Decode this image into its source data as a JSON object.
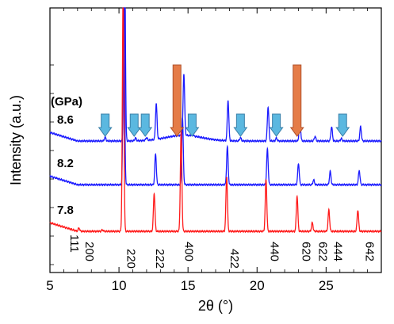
{
  "chart_data": {
    "type": "line",
    "title": "",
    "xlabel": "2θ (°)",
    "ylabel": "Intensity (a.u.)",
    "xlim": [
      5,
      29
    ],
    "x_ticks": [
      5,
      10,
      15,
      20,
      25
    ],
    "pressure_unit_label": "(GPa)",
    "series": [
      {
        "name": "8.6",
        "color": "#1a1aff",
        "baseline": 2.0,
        "broad": [
          [
            14.7,
            0.12,
            1.3
          ]
        ],
        "peaks": [
          [
            9.0,
            0.08
          ],
          [
            10.4,
            5.0
          ],
          [
            11.2,
            0.06
          ],
          [
            12.0,
            0.06
          ],
          [
            12.7,
            0.75
          ],
          [
            14.7,
            1.3
          ],
          [
            15.3,
            0.1
          ],
          [
            17.9,
            0.85
          ],
          [
            18.8,
            0.07
          ],
          [
            20.8,
            0.72
          ],
          [
            21.4,
            0.06
          ],
          [
            23.1,
            0.45
          ],
          [
            24.2,
            0.1
          ],
          [
            25.4,
            0.3
          ],
          [
            26.1,
            0.05
          ],
          [
            27.5,
            0.3
          ]
        ]
      },
      {
        "name": "8.2",
        "color": "#1a1aff",
        "baseline": 1.08,
        "broad": [],
        "peaks": [
          [
            10.35,
            5.0
          ],
          [
            12.65,
            0.65
          ],
          [
            14.6,
            1.4
          ],
          [
            17.85,
            0.8
          ],
          [
            20.75,
            0.75
          ],
          [
            23.0,
            0.45
          ],
          [
            24.1,
            0.1
          ],
          [
            25.3,
            0.28
          ],
          [
            27.4,
            0.3
          ]
        ]
      },
      {
        "name": "7.8",
        "color": "#ff1a1a",
        "baseline": 0.1,
        "broad": [],
        "peaks": [
          [
            7.1,
            0.07
          ],
          [
            8.8,
            0.03
          ],
          [
            10.3,
            5.0
          ],
          [
            12.55,
            0.8
          ],
          [
            14.5,
            2.1
          ],
          [
            17.8,
            1.15
          ],
          [
            20.65,
            1.1
          ],
          [
            22.9,
            0.75
          ],
          [
            24.0,
            0.18
          ],
          [
            25.2,
            0.45
          ],
          [
            27.3,
            0.45
          ]
        ]
      }
    ],
    "hkl_labels": [
      {
        "label": "111",
        "x": 6.2,
        "row": 0
      },
      {
        "label": "200",
        "x": 7.3,
        "row": 1
      },
      {
        "label": "220",
        "x": 10.3,
        "row": 2
      },
      {
        "label": "222",
        "x": 12.4,
        "row": 2
      },
      {
        "label": "400",
        "x": 14.5,
        "row": 1
      },
      {
        "label": "422",
        "x": 17.8,
        "row": 2
      },
      {
        "label": "440",
        "x": 20.7,
        "row": 1
      },
      {
        "label": "620",
        "x": 23.0,
        "row": 1
      },
      {
        "label": "622",
        "x": 24.2,
        "row": 1
      },
      {
        "label": "444",
        "x": 25.3,
        "row": 1
      },
      {
        "label": "642",
        "x": 27.6,
        "row": 1
      }
    ],
    "arrows": [
      {
        "x": 9.0,
        "series": "8.6",
        "color": "#5bb8e0",
        "edge": "#3a7fa8"
      },
      {
        "x": 11.1,
        "series": "8.6",
        "color": "#5bb8e0",
        "edge": "#3a7fa8"
      },
      {
        "x": 11.9,
        "series": "8.6",
        "color": "#5bb8e0",
        "edge": "#3a7fa8"
      },
      {
        "x": 15.3,
        "series": "8.6",
        "color": "#5bb8e0",
        "edge": "#3a7fa8"
      },
      {
        "x": 18.8,
        "series": "8.6",
        "color": "#5bb8e0",
        "edge": "#3a7fa8"
      },
      {
        "x": 21.4,
        "series": "8.6",
        "color": "#5bb8e0",
        "edge": "#3a7fa8"
      },
      {
        "x": 26.2,
        "series": "8.6",
        "color": "#5bb8e0",
        "edge": "#3a7fa8"
      },
      {
        "x": 14.2,
        "series": "8.6",
        "color": "#e57c48",
        "edge": "#b0502a",
        "tall": true
      },
      {
        "x": 22.9,
        "series": "8.6",
        "color": "#e57c48",
        "edge": "#b0502a",
        "tall": true
      }
    ]
  }
}
